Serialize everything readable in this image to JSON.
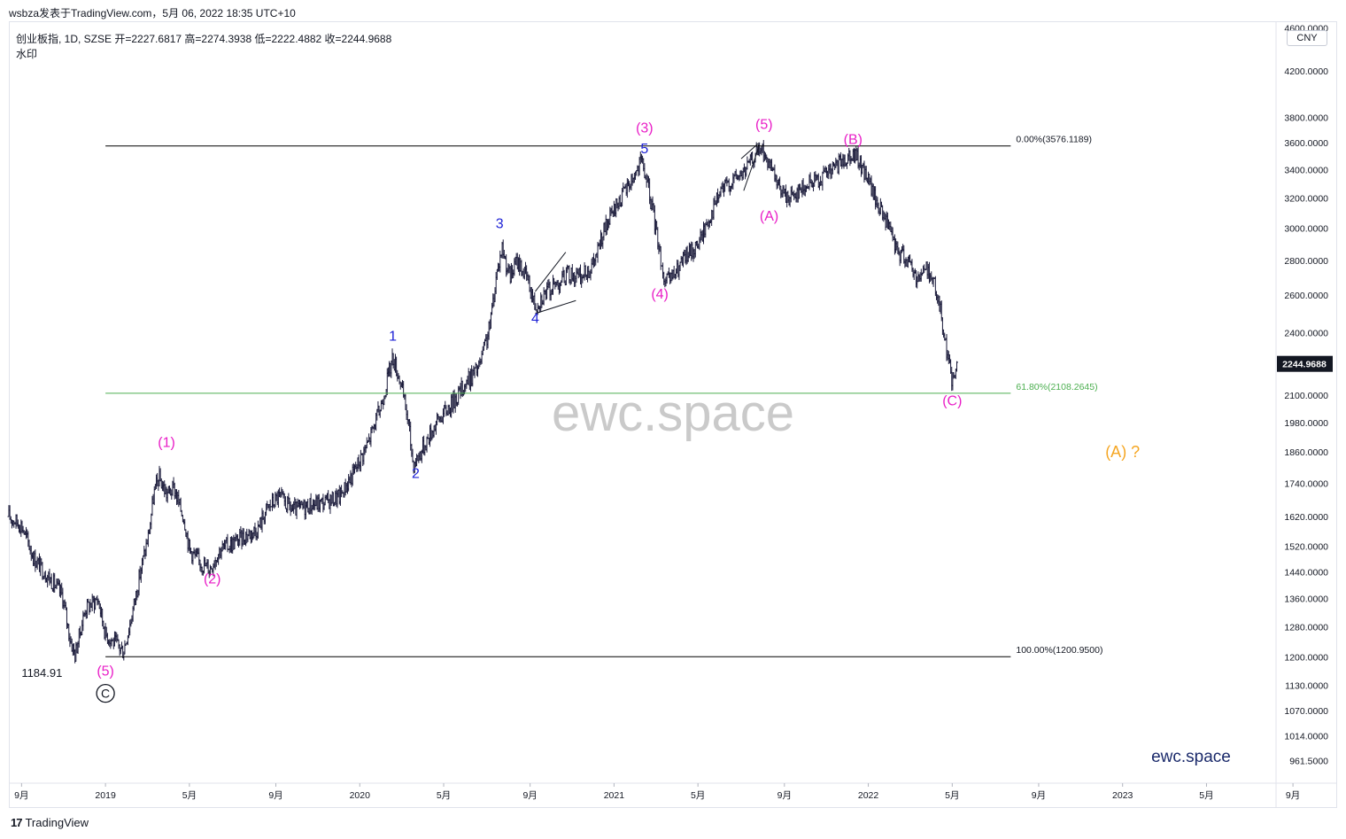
{
  "header": {
    "publisher_line": "wsbza发表于TradingView.com，5月 06, 2022 18:35 UTC+10",
    "symbol_line": "创业板指, 1D, SZSE  开=2227.6817  高=2274.3938  低=2222.4882  收=2244.9688",
    "watermark_label": "水印",
    "currency": "CNY"
  },
  "footer": {
    "logo_mark": "17",
    "brand": "TradingView"
  },
  "watermark": {
    "center_text": "ewc.space",
    "corner_text": "ewc.space"
  },
  "colors": {
    "candle": "#1a1a3a",
    "fib_line": "#000000",
    "fib_green": "#4caf50",
    "wave_primary": "#e91ec7",
    "wave_minor": "#1e22d6",
    "wave_future": "#f5a623",
    "corner_brand": "#1b2a6b",
    "last_price_bg": "#131722"
  },
  "chart_data": {
    "type": "candlestick",
    "symbol": "创业板指",
    "interval": "1D",
    "exchange": "SZSE",
    "ohlc_last": {
      "open": 2227.6817,
      "high": 2274.3938,
      "low": 2222.4882,
      "close": 2244.9688
    },
    "y_scale": "log",
    "ylim": [
      920,
      4650
    ],
    "xlim": [
      2018.62,
      2023.6
    ],
    "y_ticks": [
      {
        "value": 4600,
        "label": "4600.0000"
      },
      {
        "value": 4200,
        "label": "4200.0000"
      },
      {
        "value": 3800,
        "label": "3800.0000"
      },
      {
        "value": 3600,
        "label": "3600.0000"
      },
      {
        "value": 3400,
        "label": "3400.0000"
      },
      {
        "value": 3200,
        "label": "3200.0000"
      },
      {
        "value": 3000,
        "label": "3000.0000"
      },
      {
        "value": 2800,
        "label": "2800.0000"
      },
      {
        "value": 2600,
        "label": "2600.0000"
      },
      {
        "value": 2400,
        "label": "2400.0000"
      },
      {
        "value": 2100,
        "label": "2100.0000"
      },
      {
        "value": 1980,
        "label": "1980.0000"
      },
      {
        "value": 1860,
        "label": "1860.0000"
      },
      {
        "value": 1740,
        "label": "1740.0000"
      },
      {
        "value": 1620,
        "label": "1620.0000"
      },
      {
        "value": 1520,
        "label": "1520.0000"
      },
      {
        "value": 1440,
        "label": "1440.0000"
      },
      {
        "value": 1360,
        "label": "1360.0000"
      },
      {
        "value": 1280,
        "label": "1280.0000"
      },
      {
        "value": 1200,
        "label": "1200.0000"
      },
      {
        "value": 1130,
        "label": "1130.0000"
      },
      {
        "value": 1070,
        "label": "1070.0000"
      },
      {
        "value": 1014,
        "label": "1014.0000"
      },
      {
        "value": 961.5,
        "label": "961.5000"
      }
    ],
    "last_price": {
      "value": 2244.9688,
      "label": "2244.9688"
    },
    "x_ticks": [
      {
        "t": 2018.67,
        "label": "9月"
      },
      {
        "t": 2019.0,
        "label": "2019"
      },
      {
        "t": 2019.33,
        "label": "5月"
      },
      {
        "t": 2019.67,
        "label": "9月"
      },
      {
        "t": 2020.0,
        "label": "2020"
      },
      {
        "t": 2020.33,
        "label": "5月"
      },
      {
        "t": 2020.67,
        "label": "9月"
      },
      {
        "t": 2021.0,
        "label": "2021"
      },
      {
        "t": 2021.33,
        "label": "5月"
      },
      {
        "t": 2021.67,
        "label": "9月"
      },
      {
        "t": 2022.0,
        "label": "2022"
      },
      {
        "t": 2022.33,
        "label": "5月"
      },
      {
        "t": 2022.67,
        "label": "9月"
      },
      {
        "t": 2023.0,
        "label": "2023"
      },
      {
        "t": 2023.33,
        "label": "5月"
      },
      {
        "t": 2023.67,
        "label": "9月"
      }
    ],
    "price_path": [
      [
        2018.62,
        1620
      ],
      [
        2018.67,
        1590
      ],
      [
        2018.72,
        1480
      ],
      [
        2018.78,
        1420
      ],
      [
        2018.83,
        1370
      ],
      [
        2018.86,
        1250
      ],
      [
        2018.88,
        1205
      ],
      [
        2018.92,
        1330
      ],
      [
        2018.97,
        1360
      ],
      [
        2019.0,
        1260
      ],
      [
        2019.04,
        1235
      ],
      [
        2019.07,
        1215
      ],
      [
        2019.1,
        1300
      ],
      [
        2019.14,
        1450
      ],
      [
        2019.17,
        1560
      ],
      [
        2019.19,
        1700
      ],
      [
        2019.21,
        1760
      ],
      [
        2019.24,
        1700
      ],
      [
        2019.27,
        1720
      ],
      [
        2019.29,
        1660
      ],
      [
        2019.31,
        1610
      ],
      [
        2019.33,
        1510
      ],
      [
        2019.37,
        1470
      ],
      [
        2019.41,
        1450
      ],
      [
        2019.45,
        1510
      ],
      [
        2019.5,
        1530
      ],
      [
        2019.56,
        1560
      ],
      [
        2019.6,
        1580
      ],
      [
        2019.63,
        1640
      ],
      [
        2019.68,
        1690
      ],
      [
        2019.74,
        1640
      ],
      [
        2019.8,
        1660
      ],
      [
        2019.86,
        1670
      ],
      [
        2019.92,
        1690
      ],
      [
        2019.97,
        1770
      ],
      [
        2020.03,
        1890
      ],
      [
        2020.08,
        2040
      ],
      [
        2020.13,
        2280
      ],
      [
        2020.16,
        2160
      ],
      [
        2020.19,
        1990
      ],
      [
        2020.21,
        1810
      ],
      [
        2020.24,
        1860
      ],
      [
        2020.3,
        1980
      ],
      [
        2020.36,
        2060
      ],
      [
        2020.42,
        2160
      ],
      [
        2020.47,
        2230
      ],
      [
        2020.51,
        2420
      ],
      [
        2020.54,
        2740
      ],
      [
        2020.56,
        2880
      ],
      [
        2020.59,
        2700
      ],
      [
        2020.62,
        2800
      ],
      [
        2020.66,
        2690
      ],
      [
        2020.69,
        2540
      ],
      [
        2020.72,
        2600
      ],
      [
        2020.77,
        2660
      ],
      [
        2020.82,
        2720
      ],
      [
        2020.87,
        2700
      ],
      [
        2020.92,
        2780
      ],
      [
        2020.96,
        2980
      ],
      [
        2021.01,
        3150
      ],
      [
        2021.06,
        3300
      ],
      [
        2021.11,
        3460
      ],
      [
        2021.14,
        3220
      ],
      [
        2021.17,
        2950
      ],
      [
        2021.2,
        2660
      ],
      [
        2021.24,
        2720
      ],
      [
        2021.28,
        2820
      ],
      [
        2021.33,
        2900
      ],
      [
        2021.37,
        3050
      ],
      [
        2021.42,
        3250
      ],
      [
        2021.47,
        3330
      ],
      [
        2021.51,
        3380
      ],
      [
        2021.55,
        3500
      ],
      [
        2021.58,
        3560
      ],
      [
        2021.61,
        3420
      ],
      [
        2021.64,
        3300
      ],
      [
        2021.68,
        3200
      ],
      [
        2021.73,
        3260
      ],
      [
        2021.77,
        3300
      ],
      [
        2021.81,
        3340
      ],
      [
        2021.86,
        3400
      ],
      [
        2021.9,
        3460
      ],
      [
        2021.93,
        3530
      ],
      [
        2021.96,
        3470
      ],
      [
        2022.0,
        3330
      ],
      [
        2022.03,
        3180
      ],
      [
        2022.07,
        3050
      ],
      [
        2022.11,
        2860
      ],
      [
        2022.15,
        2820
      ],
      [
        2022.19,
        2700
      ],
      [
        2022.23,
        2760
      ],
      [
        2022.26,
        2660
      ],
      [
        2022.29,
        2470
      ],
      [
        2022.31,
        2300
      ],
      [
        2022.33,
        2160
      ],
      [
        2022.35,
        2240
      ]
    ],
    "fib_levels": [
      {
        "level": 0.0,
        "price": 3576.1189,
        "label": "0.00%(3576.1189)"
      },
      {
        "level": 0.618,
        "price": 2108.2645,
        "label": "61.80%(2108.2645)"
      },
      {
        "level": 1.0,
        "price": 1200.95,
        "label": "100.00%(1200.9500)"
      }
    ],
    "annotations": [
      {
        "text": "1184.91",
        "t": 2018.75,
        "y": 1150,
        "style": "price"
      },
      {
        "text": "(5)",
        "t": 2019.0,
        "y": 1153,
        "style": "primary"
      },
      {
        "text": "C",
        "t": 2019.0,
        "y": 1100,
        "style": "circled"
      },
      {
        "text": "(1)",
        "t": 2019.24,
        "y": 1880,
        "style": "primary"
      },
      {
        "text": "(2)",
        "t": 2019.42,
        "y": 1405,
        "style": "primary"
      },
      {
        "text": "1",
        "t": 2020.13,
        "y": 2360,
        "style": "minor"
      },
      {
        "text": "2",
        "t": 2020.22,
        "y": 1760,
        "style": "minor"
      },
      {
        "text": "3",
        "t": 2020.55,
        "y": 3000,
        "style": "minor"
      },
      {
        "text": "4",
        "t": 2020.69,
        "y": 2450,
        "style": "minor"
      },
      {
        "text": "5",
        "t": 2021.12,
        "y": 3520,
        "style": "minor"
      },
      {
        "text": "(3)",
        "t": 2021.12,
        "y": 3680,
        "style": "primary"
      },
      {
        "text": "(4)",
        "t": 2021.18,
        "y": 2580,
        "style": "primary"
      },
      {
        "text": "(5)",
        "t": 2021.59,
        "y": 3710,
        "style": "primary"
      },
      {
        "text": "(A)",
        "t": 2021.61,
        "y": 3050,
        "style": "primary"
      },
      {
        "text": "(B)",
        "t": 2021.94,
        "y": 3590,
        "style": "primary"
      },
      {
        "text": "(C)",
        "t": 2022.33,
        "y": 2055,
        "style": "primary"
      },
      {
        "text": "(A) ?",
        "t": 2023.0,
        "y": 1840,
        "style": "future"
      }
    ]
  }
}
